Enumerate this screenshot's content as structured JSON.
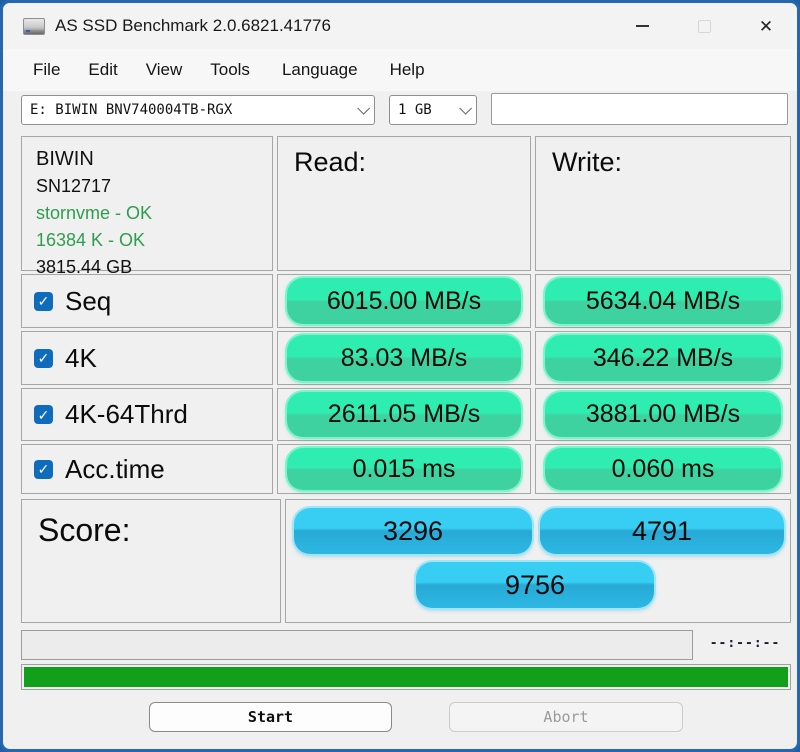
{
  "window": {
    "title": "AS SSD Benchmark 2.0.6821.41776",
    "close_glyph": "✕"
  },
  "menu": {
    "items": [
      "File",
      "Edit",
      "View",
      "Tools",
      "Language",
      "Help"
    ]
  },
  "toolbar": {
    "drive_selected": "E: BIWIN BNV740004TB-RGX",
    "test_size_selected": "1 GB"
  },
  "drive_info": {
    "vendor": "BIWIN",
    "serial": "SN12717",
    "driver_status": "stornvme - OK",
    "alignment_status": "16384 K - OK",
    "capacity": "3815.44 GB"
  },
  "results_header": {
    "read": "Read:",
    "write": "Write:"
  },
  "tests": [
    {
      "label": "Seq",
      "checked": true,
      "check_glyph": "✓",
      "read": "6015.00 MB/s",
      "write": "5634.04 MB/s"
    },
    {
      "label": "4K",
      "checked": true,
      "check_glyph": "✓",
      "read": "83.03 MB/s",
      "write": "346.22 MB/s"
    },
    {
      "label": "4K-64Thrd",
      "checked": true,
      "check_glyph": "✓",
      "read": "2611.05 MB/s",
      "write": "3881.00 MB/s"
    },
    {
      "label": "Acc.time",
      "checked": true,
      "check_glyph": "✓",
      "read": "0.015 ms",
      "write": "0.060 ms"
    }
  ],
  "score": {
    "label": "Score:",
    "read": "3296",
    "write": "4791",
    "total": "9756"
  },
  "status": {
    "time_remaining": "--:--:--"
  },
  "buttons": {
    "start": "Start",
    "abort": "Abort"
  },
  "colors": {
    "accent_border": "#2767b0",
    "value_pill_green_top": "#2fedb0",
    "value_pill_green_bottom": "#3fd2a1",
    "score_pill_blue_top": "#38cdf2",
    "score_pill_blue_bottom": "#28a9d6",
    "progress_bar_green": "#12a01b",
    "ok_text_green": "#2e9e4e",
    "checkbox_blue": "#0f6cbd"
  }
}
